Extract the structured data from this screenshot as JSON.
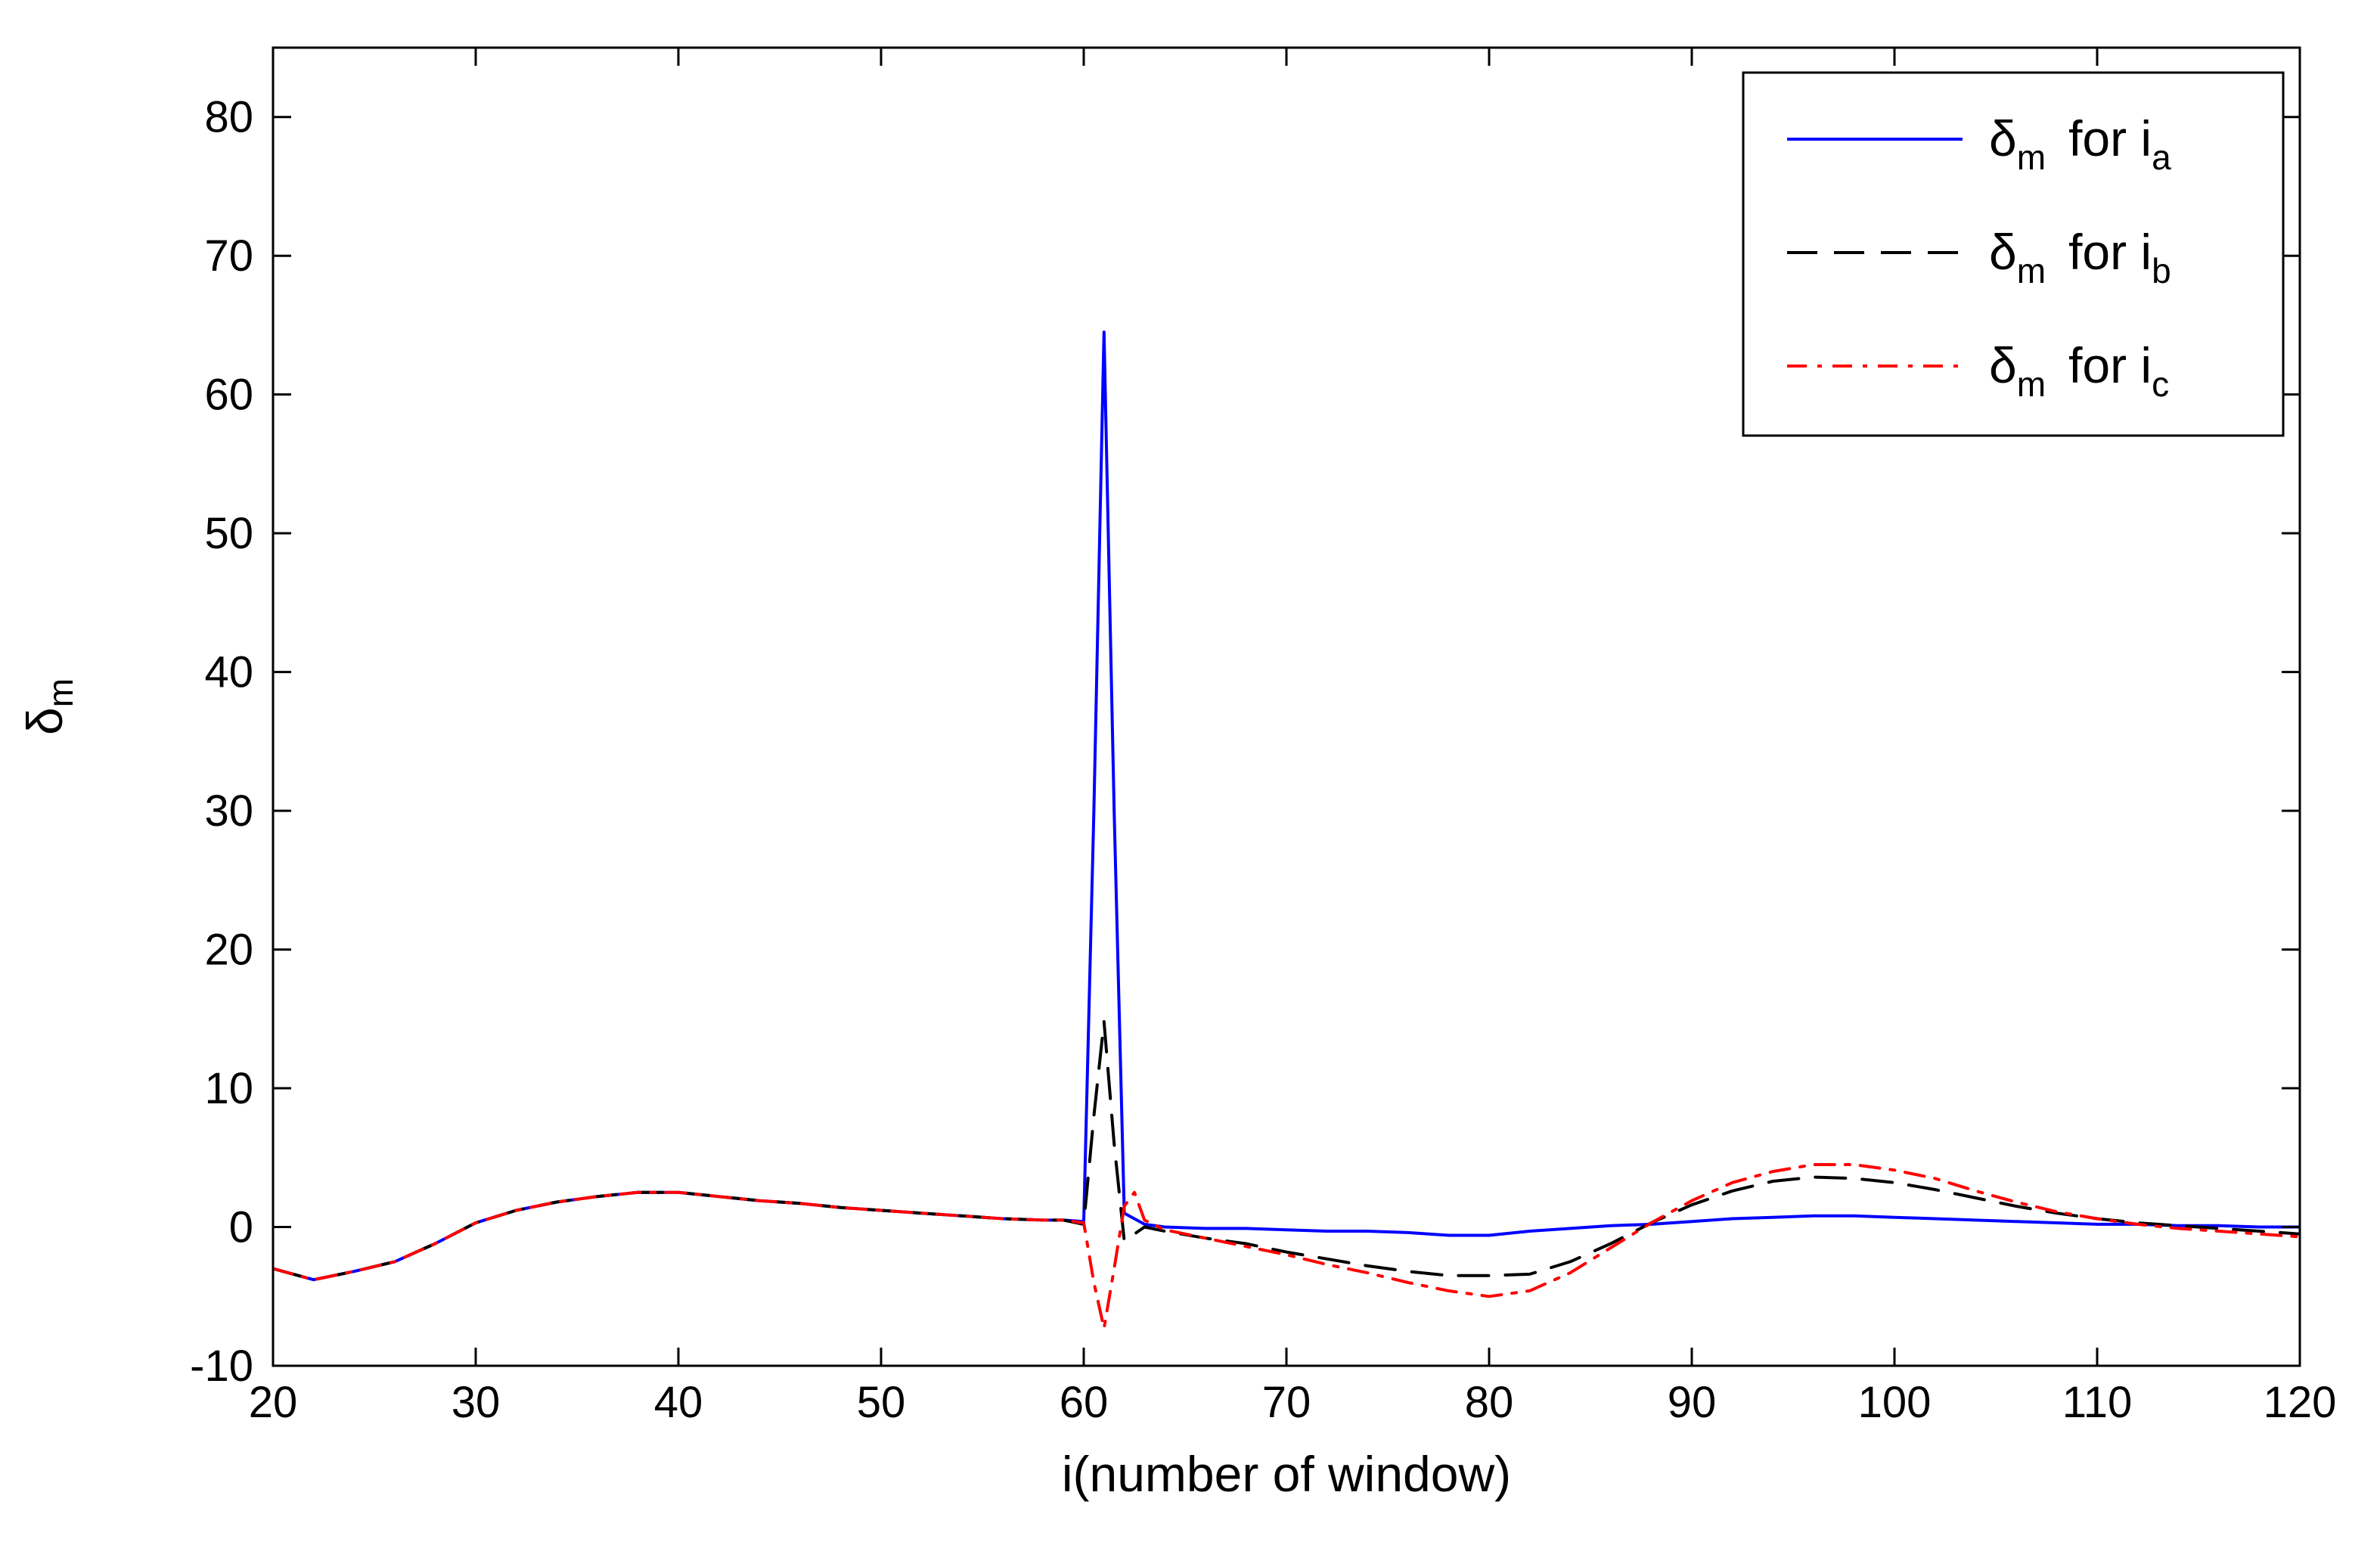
{
  "chart_data": {
    "type": "line",
    "title": "",
    "xlabel": "i(number of window)",
    "ylabel": {
      "symbol": "δ",
      "subscript": "m"
    },
    "xlim": [
      20,
      120
    ],
    "ylim": [
      -10,
      85
    ],
    "xticks": [
      20,
      30,
      40,
      50,
      60,
      70,
      80,
      90,
      100,
      110,
      120
    ],
    "yticks": [
      -10,
      0,
      10,
      20,
      30,
      40,
      50,
      60,
      70,
      80
    ],
    "grid": false,
    "legend_position": "top-right",
    "series": [
      {
        "legend": {
          "symbol": "δ",
          "subscript": "m",
          "text": "for i",
          "text_subscript": "a"
        },
        "color": "#0000ff",
        "style": "solid",
        "x": [
          20,
          22,
          24,
          26,
          28,
          30,
          32,
          34,
          36,
          38,
          40,
          42,
          44,
          46,
          48,
          50,
          52,
          54,
          56,
          58,
          59,
          60,
          60.5,
          61,
          61.5,
          62,
          63,
          64,
          66,
          68,
          70,
          72,
          74,
          76,
          78,
          80,
          82,
          84,
          86,
          88,
          90,
          92,
          94,
          96,
          98,
          100,
          102,
          104,
          106,
          108,
          110,
          112,
          114,
          116,
          118,
          120
        ],
        "y": [
          -3.0,
          -3.8,
          -3.2,
          -2.5,
          -1.2,
          0.3,
          1.2,
          1.8,
          2.2,
          2.5,
          2.5,
          2.2,
          1.9,
          1.7,
          1.4,
          1.2,
          1.0,
          0.8,
          0.6,
          0.5,
          0.5,
          0.4,
          30.0,
          64.5,
          30.0,
          1.0,
          0.2,
          0.0,
          -0.1,
          -0.1,
          -0.2,
          -0.3,
          -0.3,
          -0.4,
          -0.6,
          -0.6,
          -0.3,
          -0.1,
          0.1,
          0.2,
          0.4,
          0.6,
          0.7,
          0.8,
          0.8,
          0.7,
          0.6,
          0.5,
          0.4,
          0.3,
          0.2,
          0.2,
          0.1,
          0.1,
          0.0,
          0.0
        ]
      },
      {
        "legend": {
          "symbol": "δ",
          "subscript": "m",
          "text": "for i",
          "text_subscript": "b"
        },
        "color": "#000000",
        "style": "dashed",
        "x": [
          20,
          22,
          24,
          26,
          28,
          30,
          32,
          34,
          36,
          38,
          40,
          42,
          44,
          46,
          48,
          50,
          52,
          54,
          56,
          58,
          59,
          60,
          60.5,
          61,
          61.5,
          62,
          63,
          64,
          66,
          68,
          70,
          72,
          74,
          76,
          78,
          80,
          82,
          84,
          86,
          88,
          90,
          92,
          94,
          96,
          98,
          100,
          102,
          104,
          106,
          108,
          110,
          112,
          114,
          116,
          118,
          120
        ],
        "y": [
          -3.0,
          -3.8,
          -3.2,
          -2.5,
          -1.2,
          0.3,
          1.2,
          1.8,
          2.2,
          2.5,
          2.5,
          2.2,
          1.9,
          1.7,
          1.4,
          1.2,
          1.0,
          0.8,
          0.6,
          0.5,
          0.5,
          0.2,
          8.0,
          14.8,
          6.0,
          -1.0,
          0.0,
          -0.3,
          -0.8,
          -1.2,
          -1.8,
          -2.3,
          -2.8,
          -3.2,
          -3.5,
          -3.5,
          -3.4,
          -2.5,
          -1.2,
          0.3,
          1.6,
          2.6,
          3.3,
          3.6,
          3.5,
          3.2,
          2.7,
          2.1,
          1.5,
          1.0,
          0.6,
          0.3,
          0.1,
          -0.1,
          -0.3,
          -0.5
        ]
      },
      {
        "legend": {
          "symbol": "δ",
          "subscript": "m",
          "text": "for i",
          "text_subscript": "c"
        },
        "color": "#ff0000",
        "style": "dashdot",
        "x": [
          20,
          22,
          24,
          26,
          28,
          30,
          32,
          34,
          36,
          38,
          40,
          42,
          44,
          46,
          48,
          50,
          52,
          54,
          56,
          58,
          59,
          60,
          60.5,
          61,
          61.5,
          62,
          62.5,
          63,
          64,
          66,
          68,
          70,
          72,
          74,
          76,
          78,
          80,
          82,
          84,
          86,
          88,
          90,
          92,
          94,
          96,
          98,
          100,
          102,
          104,
          106,
          108,
          110,
          112,
          114,
          116,
          118,
          120
        ],
        "y": [
          -3.0,
          -3.8,
          -3.2,
          -2.5,
          -1.2,
          0.3,
          1.2,
          1.8,
          2.2,
          2.5,
          2.5,
          2.2,
          1.9,
          1.7,
          1.4,
          1.2,
          1.0,
          0.8,
          0.6,
          0.5,
          0.5,
          0.3,
          -4.0,
          -7.3,
          -3.0,
          1.5,
          2.5,
          0.5,
          -0.2,
          -0.8,
          -1.4,
          -2.0,
          -2.7,
          -3.3,
          -4.0,
          -4.6,
          -5.0,
          -4.6,
          -3.3,
          -1.5,
          0.3,
          1.9,
          3.2,
          4.0,
          4.5,
          4.5,
          4.1,
          3.5,
          2.6,
          1.8,
          1.1,
          0.6,
          0.2,
          -0.1,
          -0.3,
          -0.5,
          -0.7
        ]
      }
    ]
  }
}
